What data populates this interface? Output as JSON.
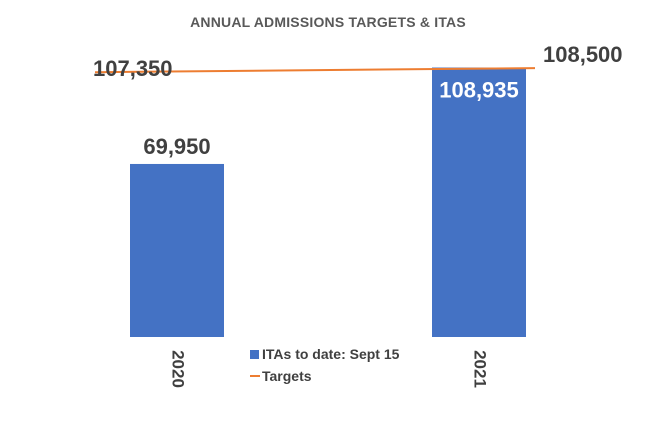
{
  "chart_data": {
    "type": "bar",
    "title": "ANNUAL ADMISSIONS TARGETS & ITAS",
    "categories": [
      "2020",
      "2021"
    ],
    "series": [
      {
        "name": "ITAs to date: Sept 15",
        "type": "bar",
        "color": "#4472C4",
        "values": [
          69950,
          108935
        ],
        "labels": [
          "69,950",
          "108,935"
        ]
      },
      {
        "name": "Targets",
        "type": "line",
        "color": "#ED7D31",
        "values": [
          107350,
          108500
        ],
        "labels": [
          "107,350",
          "108,500"
        ]
      }
    ],
    "ylim": [
      0,
      114000
    ],
    "grid": false,
    "legend_position": "bottom-center"
  },
  "legend": {
    "bar_label": "ITAs to date: Sept 15",
    "line_label": "Targets"
  }
}
